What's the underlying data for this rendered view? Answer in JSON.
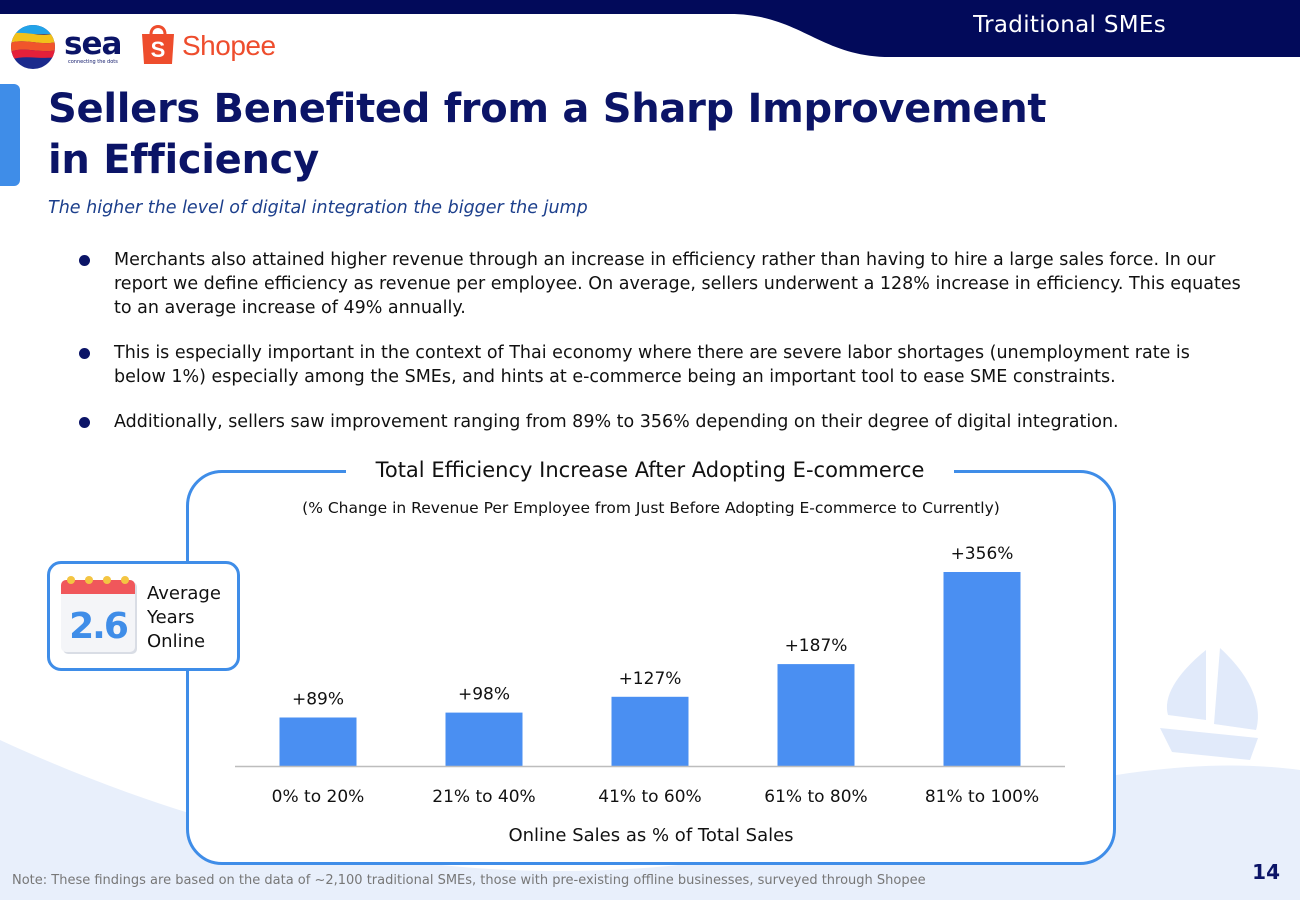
{
  "header": {
    "section_label": "Traditional SMEs",
    "logo_sea_text": "sea",
    "logo_sea_tagline": "connecting the dots",
    "logo_shopee_text": "Shopee",
    "logo_shopee_bag_letter": "S"
  },
  "slide": {
    "title": "Sellers Benefited from a Sharp Improvement in Efficiency",
    "subtitle": "The higher the level of digital integration the bigger the jump",
    "bullets": [
      "Merchants also attained higher revenue through an increase in efficiency rather than having to hire a large sales force. In our report we define efficiency as revenue per employee. On average, sellers underwent a 128% increase in efficiency. This equates to an average increase of 49% annually.",
      "This is especially important in the context of Thai economy where there are severe labor shortages (unemployment rate is below 1%) especially among the SMEs, and hints at e-commerce being an important tool to ease SME constraints.",
      "Additionally, sellers saw improvement ranging from 89% to 356% depending on their degree of digital integration."
    ]
  },
  "years_card": {
    "value": "2.6",
    "label_lines": [
      "Average",
      "Years",
      "Online"
    ]
  },
  "chart_data": {
    "type": "bar",
    "title": "Total Efficiency Increase After Adopting E-commerce",
    "subtitle": "(% Change in Revenue Per Employee from Just Before Adopting E-commerce to Currently)",
    "xlabel": "Online Sales as % of Total Sales",
    "ylabel": "",
    "categories": [
      "0% to 20%",
      "21% to 40%",
      "41% to 60%",
      "61% to 80%",
      "81% to 100%"
    ],
    "values": [
      89,
      98,
      127,
      187,
      356
    ],
    "value_labels": [
      "+89%",
      "+98%",
      "+127%",
      "+187%",
      "+356%"
    ],
    "ylim": [
      0,
      356
    ],
    "grid": false,
    "legend": "none"
  },
  "footer": {
    "note": "Note: These findings are based on the data of ~2,100 traditional SMEs, those with pre-existing offline businesses, surveyed through Shopee",
    "page_number": "14"
  },
  "colors": {
    "navy": "#0b1467",
    "accent_blue": "#3f8de8",
    "bar_blue": "#4a8ff2",
    "shopee_orange": "#ee4d2d",
    "background_wave": "#e8effb"
  }
}
